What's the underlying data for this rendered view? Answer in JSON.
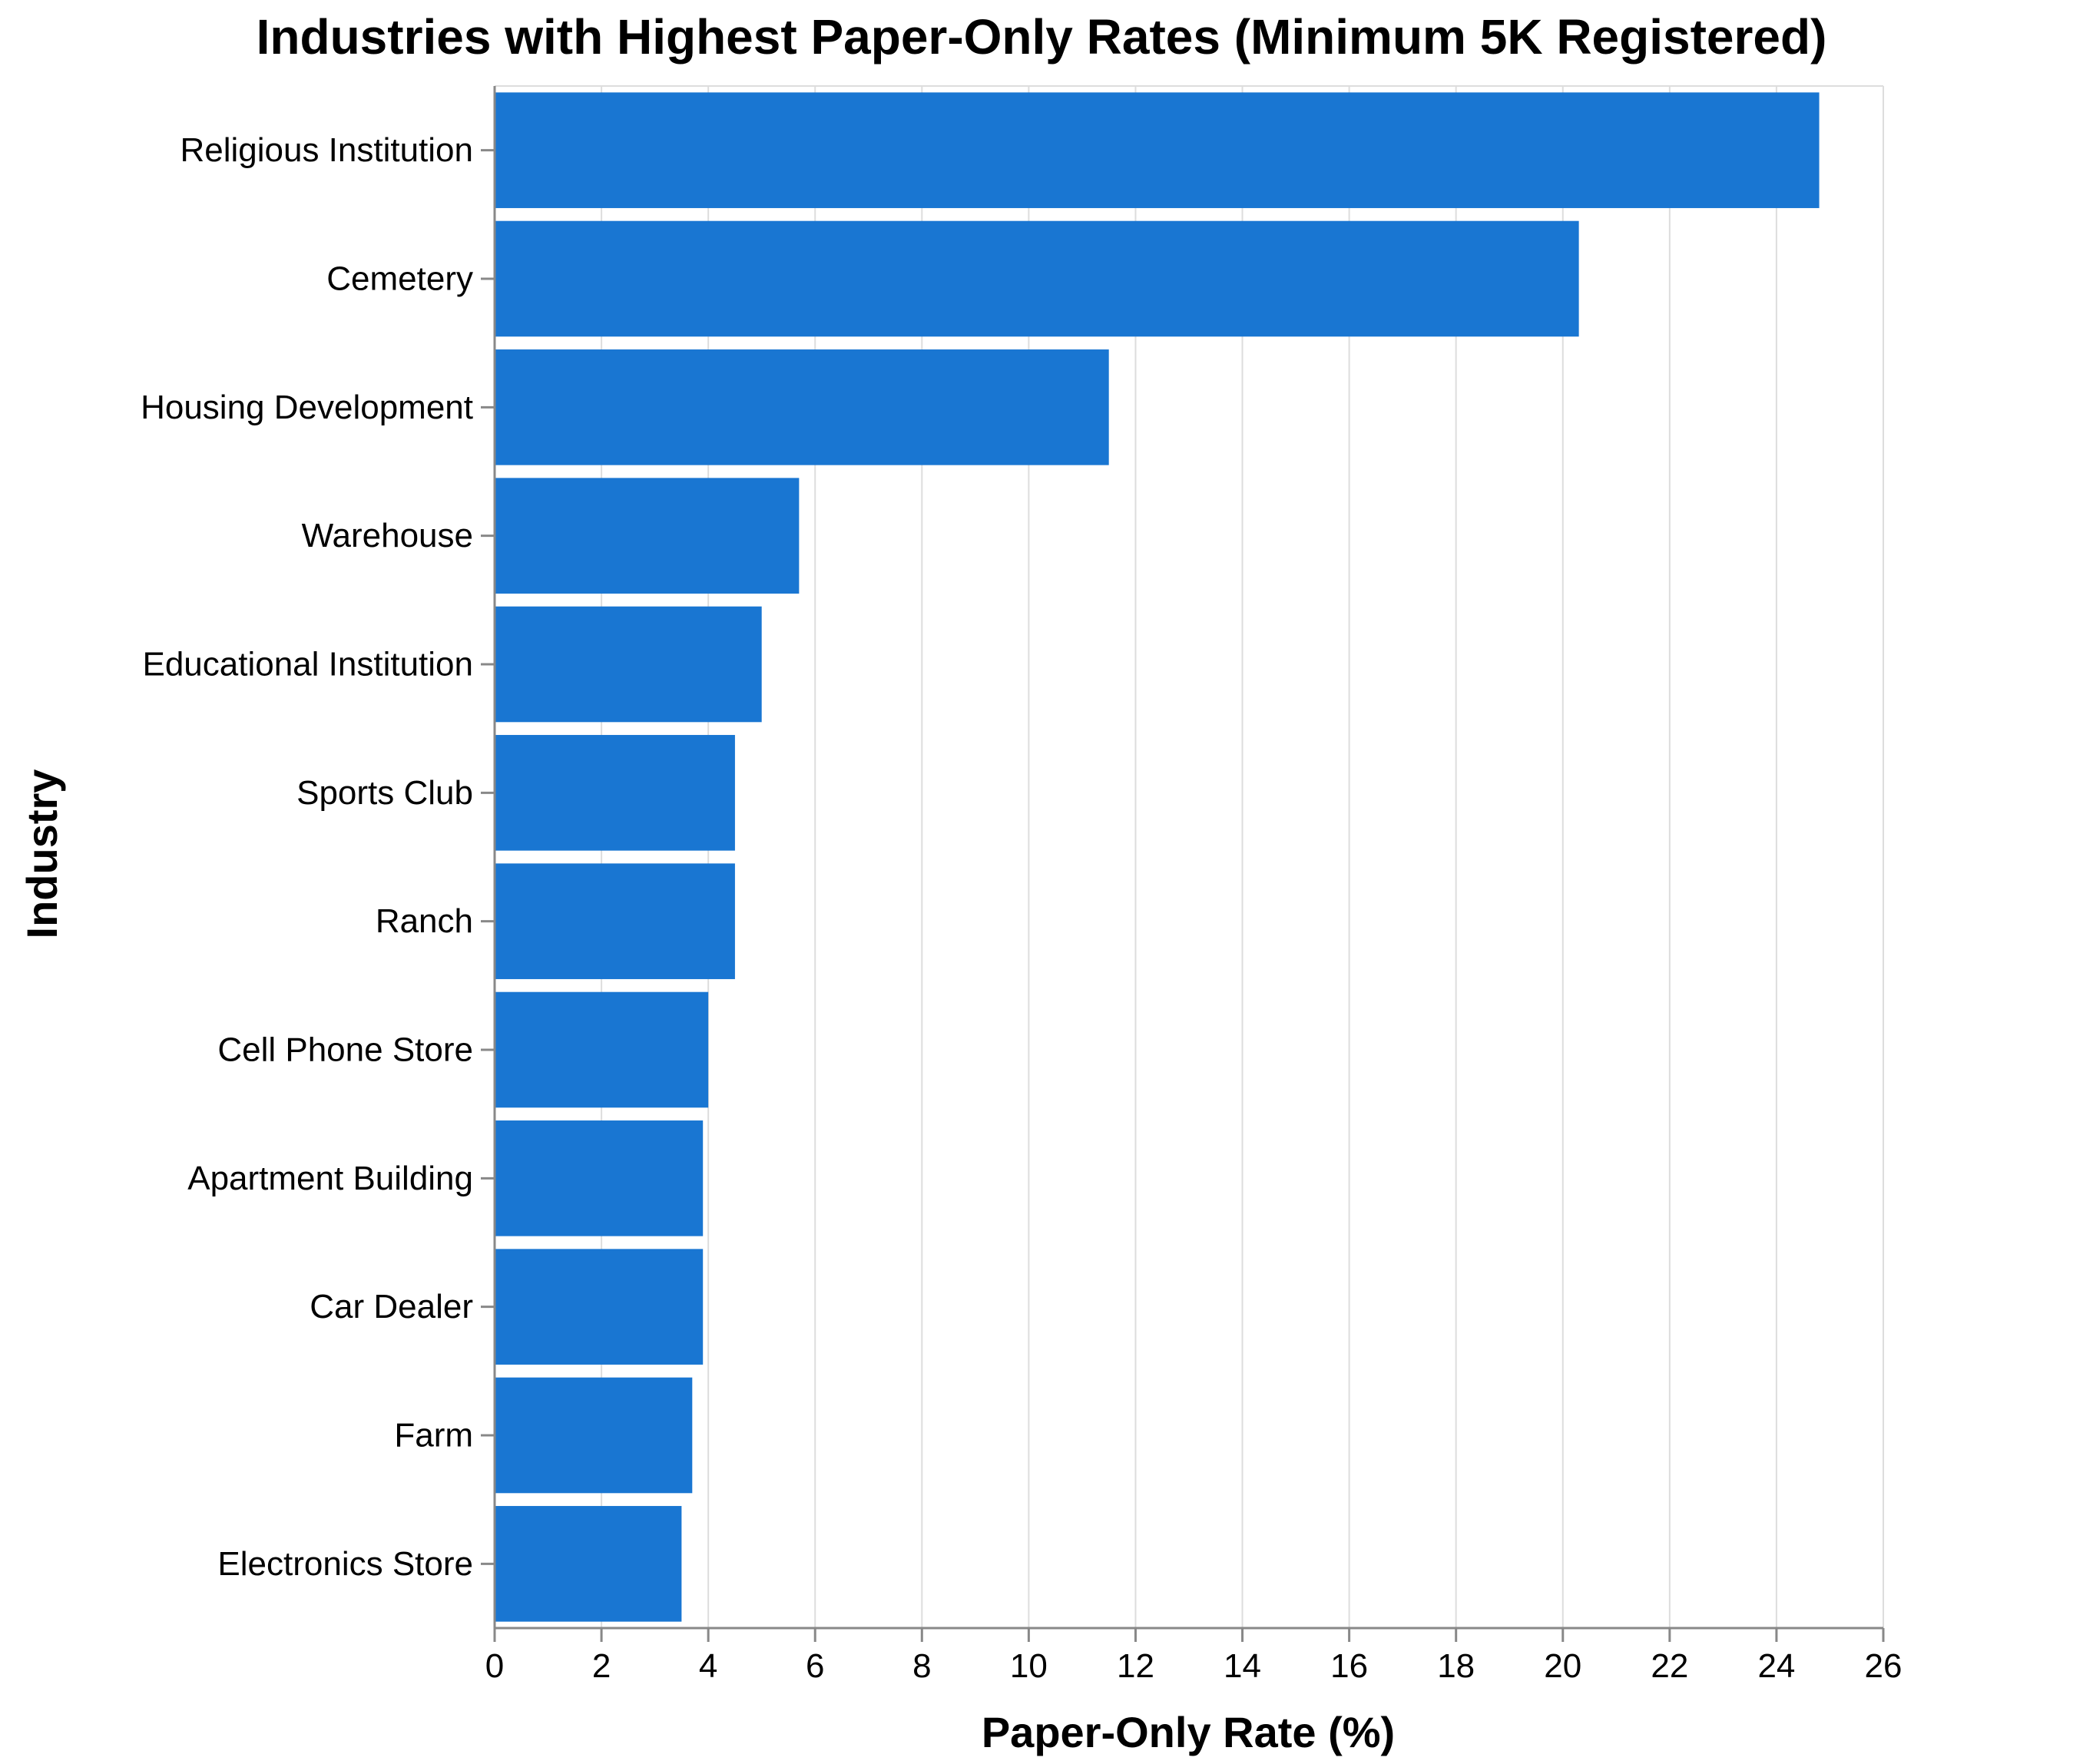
{
  "chart_data": {
    "type": "bar",
    "orientation": "horizontal",
    "title": "Industries with Highest Paper-Only Rates (Minimum 5K Registered)",
    "xlabel": "Paper-Only Rate (%)",
    "ylabel": "Industry",
    "xlim": [
      0,
      26
    ],
    "xticks": [
      0,
      2,
      4,
      6,
      8,
      10,
      12,
      14,
      16,
      18,
      20,
      22,
      24,
      26
    ],
    "grid": true,
    "bar_color": "#1976d2",
    "categories": [
      "Religious Institution",
      "Cemetery",
      "Housing Development",
      "Warehouse",
      "Educational Institution",
      "Sports Club",
      "Ranch",
      "Cell Phone Store",
      "Apartment Building",
      "Car Dealer",
      "Farm",
      "Electronics Store"
    ],
    "values": [
      24.8,
      20.3,
      11.5,
      5.7,
      5.0,
      4.5,
      4.5,
      4.0,
      3.9,
      3.9,
      3.7,
      3.5
    ]
  }
}
